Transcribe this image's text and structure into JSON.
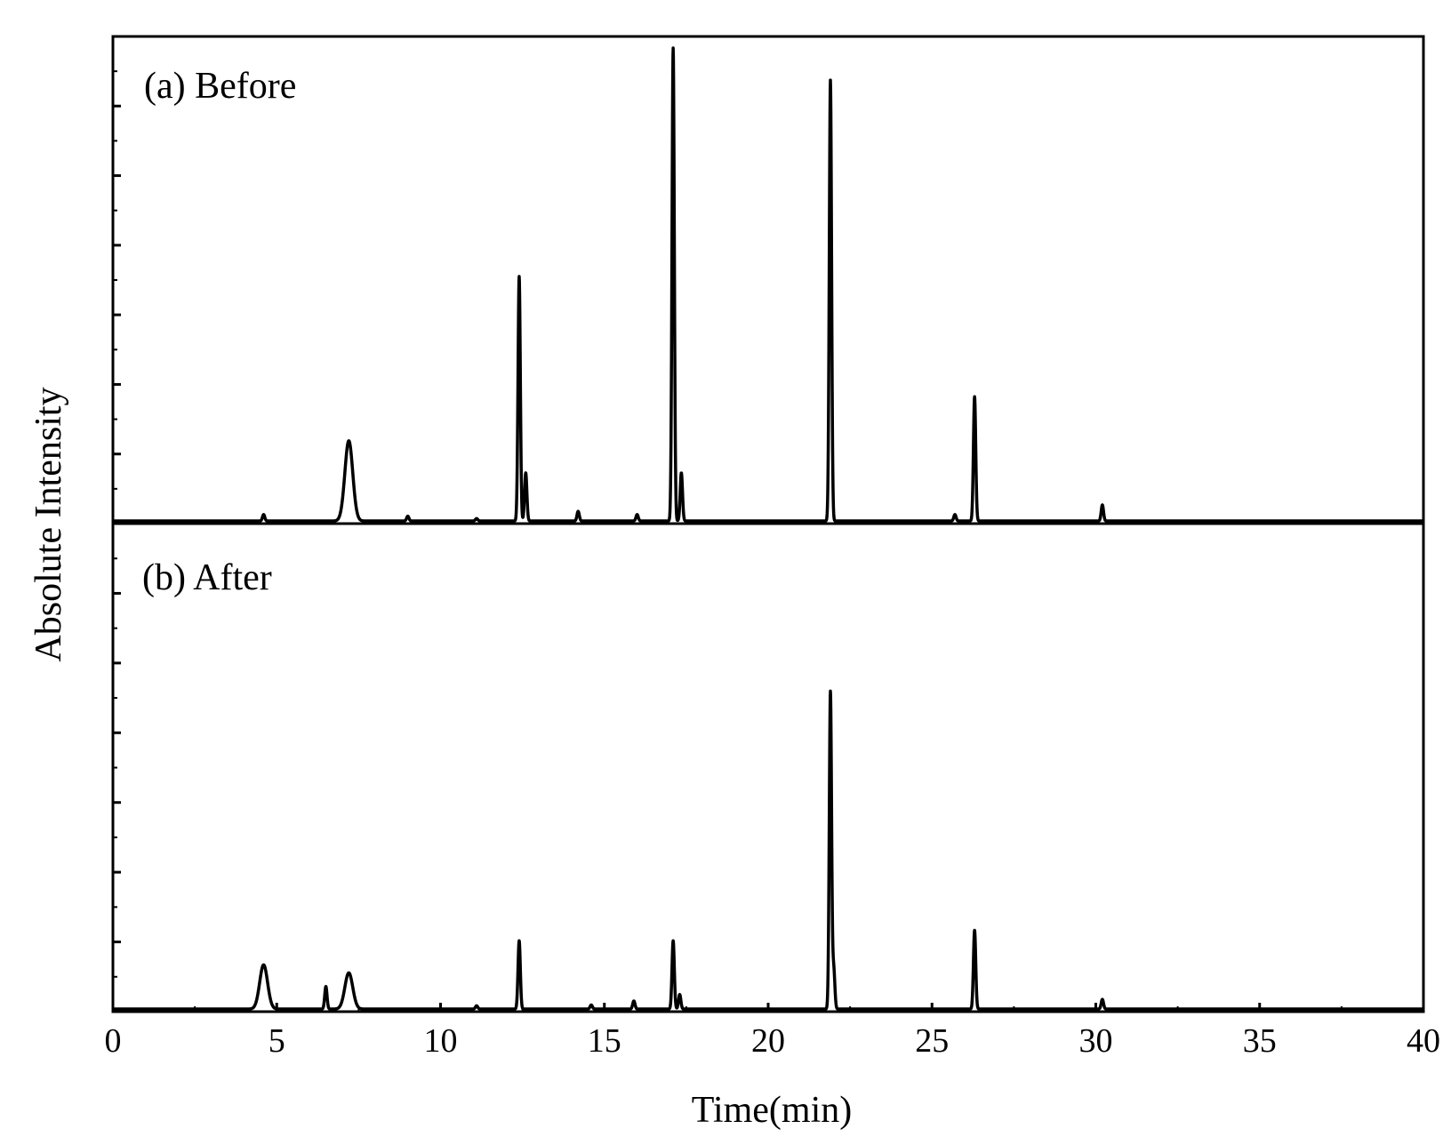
{
  "chart_data": {
    "type": "line",
    "xlabel": "Time(min)",
    "ylabel": "Absolute Intensity",
    "xlim": [
      0,
      40
    ],
    "x_ticks": [
      "0",
      "5",
      "10",
      "15",
      "20",
      "25",
      "30",
      "35",
      "40"
    ],
    "ylim": [
      0,
      60
    ],
    "y_tick_labels_shown": false,
    "grid": false,
    "legend": "none",
    "line_color": "#000000",
    "panels": [
      {
        "label": "(a) Before",
        "peaks": [
          {
            "x": 4.6,
            "y": 0.8
          },
          {
            "x": 7.2,
            "y": 10.0
          },
          {
            "x": 9.0,
            "y": 0.6
          },
          {
            "x": 11.1,
            "y": 0.3
          },
          {
            "x": 12.4,
            "y": 30.5
          },
          {
            "x": 12.6,
            "y": 6.0
          },
          {
            "x": 14.2,
            "y": 1.2
          },
          {
            "x": 16.0,
            "y": 0.8
          },
          {
            "x": 17.1,
            "y": 59.0
          },
          {
            "x": 17.35,
            "y": 6.0
          },
          {
            "x": 21.9,
            "y": 55.0
          },
          {
            "x": 25.7,
            "y": 0.8
          },
          {
            "x": 26.3,
            "y": 15.5
          },
          {
            "x": 30.2,
            "y": 2.0
          }
        ]
      },
      {
        "label": "(b) After",
        "peaks": [
          {
            "x": 4.6,
            "y": 5.5
          },
          {
            "x": 6.5,
            "y": 2.8
          },
          {
            "x": 7.2,
            "y": 4.5
          },
          {
            "x": 11.1,
            "y": 0.4
          },
          {
            "x": 12.4,
            "y": 8.5
          },
          {
            "x": 14.6,
            "y": 0.5
          },
          {
            "x": 15.9,
            "y": 1.0
          },
          {
            "x": 17.1,
            "y": 8.5
          },
          {
            "x": 17.3,
            "y": 1.8
          },
          {
            "x": 21.9,
            "y": 39.5
          },
          {
            "x": 22.0,
            "y": 5.0
          },
          {
            "x": 26.3,
            "y": 9.8
          },
          {
            "x": 30.2,
            "y": 1.2
          }
        ]
      }
    ]
  }
}
